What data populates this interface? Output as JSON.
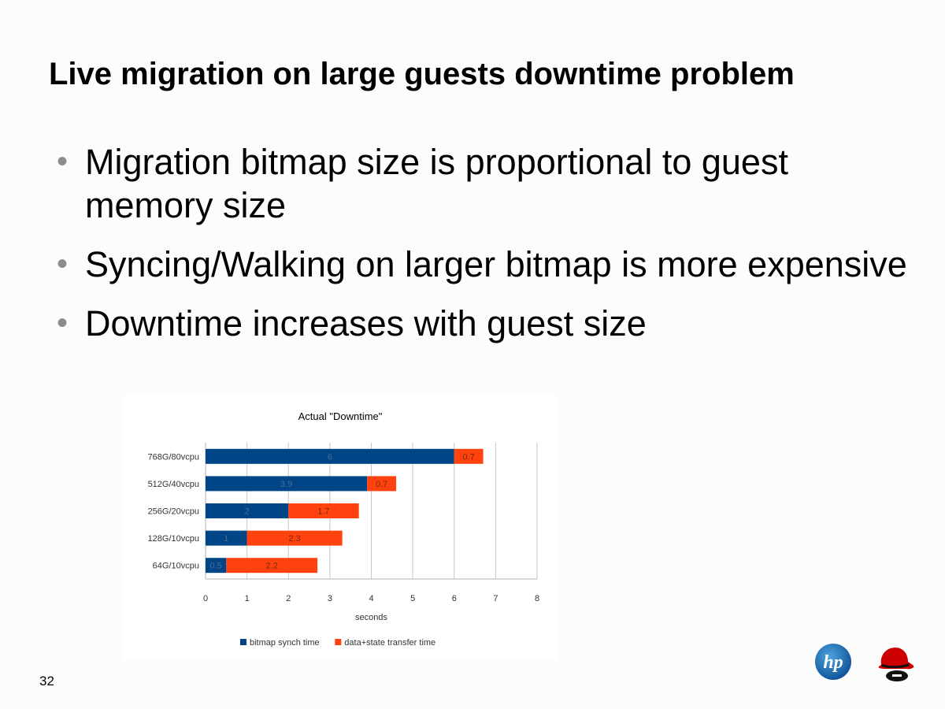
{
  "slide": {
    "title": "Live migration on large guests downtime problem",
    "bullets": [
      "Migration bitmap size is proportional to guest memory size",
      "Syncing/Walking on larger bitmap is more expensive",
      "Downtime increases with guest size"
    ],
    "bullet_glyph": "•",
    "page_number": "32"
  },
  "logos": {
    "hp": {
      "text": "hp",
      "color": "#1a6fb5"
    },
    "redhat": {
      "color": "#cc0000"
    }
  },
  "chart_data": {
    "type": "bar",
    "orientation": "horizontal",
    "stacked": true,
    "title": "Actual \"Downtime\"",
    "xlabel": "seconds",
    "ylabel": "",
    "categories": [
      "768G/80vcpu",
      "512G/40vcpu",
      "256G/20vcpu",
      "128G/10vcpu",
      "64G/10vcpu"
    ],
    "series": [
      {
        "name": "bitmap synch time",
        "color": "#004586",
        "values": [
          6,
          3.9,
          2,
          1,
          0.5
        ]
      },
      {
        "name": "data+state transfer time",
        "color": "#ff420e",
        "values": [
          0.7,
          0.7,
          1.7,
          2.3,
          2.2
        ]
      }
    ],
    "xlim": [
      0,
      8
    ],
    "xticks": [
      0,
      1,
      2,
      3,
      4,
      5,
      6,
      7,
      8
    ],
    "grid": true,
    "legend_position": "bottom",
    "data_labels": true
  }
}
